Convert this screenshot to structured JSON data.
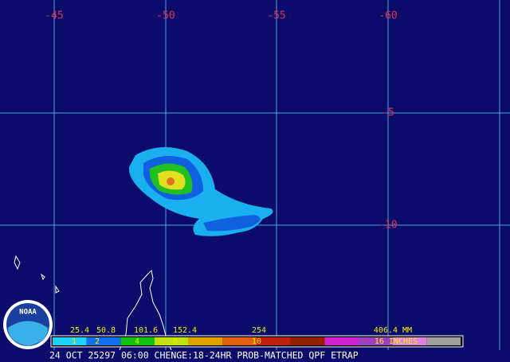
{
  "map": {
    "lon_labels": [
      "-45",
      "-50",
      "-55",
      "-60"
    ],
    "lat_labels": [
      "-5",
      "-10"
    ],
    "legend": {
      "mm_labels": [
        "25.4",
        "50.8",
        "101.6",
        "152.4",
        "254",
        "406.4 MM"
      ],
      "inch_labels": [
        "1",
        "2",
        "4",
        "6",
        "10",
        "16 INCHES"
      ]
    },
    "logo": "NOAA",
    "caption": "24 OCT 25297 06:00 CHENGE:18-24HR PROB-MATCHED QPF ETRAP"
  }
}
